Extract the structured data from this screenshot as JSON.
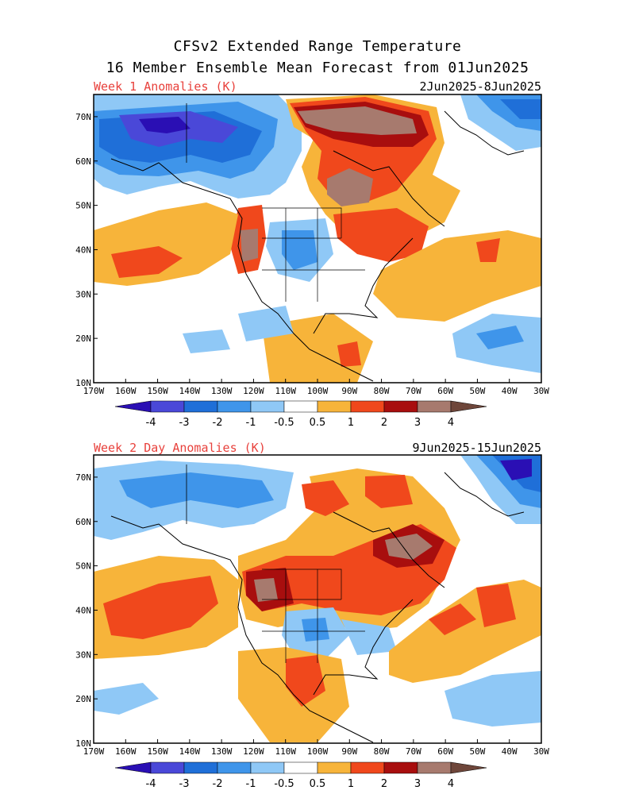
{
  "title_line1": "CFSv2 Extended Range Temperature",
  "title_line2": "16 Member Ensemble Mean Forecast from 01Jun2025",
  "panels": [
    {
      "label": "Week 1 Anomalies (K)",
      "dates": "2Jun2025-8Jun2025"
    },
    {
      "label": "Week 2 Day Anomalies (K)",
      "dates": "9Jun2025-15Jun2025"
    }
  ],
  "lon_ticks": [
    "170W",
    "160W",
    "150W",
    "140W",
    "130W",
    "120W",
    "110W",
    "100W",
    "90W",
    "80W",
    "70W",
    "60W",
    "50W",
    "40W",
    "30W"
  ],
  "lat_ticks": [
    "70N",
    "60N",
    "50N",
    "40N",
    "30N",
    "20N",
    "10N"
  ],
  "colorbar": {
    "labels": [
      "-4",
      "-3",
      "-2",
      "-1",
      "-0.5",
      "0.5",
      "1",
      "2",
      "3",
      "4"
    ],
    "colors": [
      "#2a0fb4",
      "#4a48d8",
      "#1f6fd8",
      "#3f95ea",
      "#8fc8f6",
      "#ffffff",
      "#f7b43a",
      "#f0481c",
      "#a80e0e",
      "#a77a6e",
      "#6e463a"
    ]
  }
}
